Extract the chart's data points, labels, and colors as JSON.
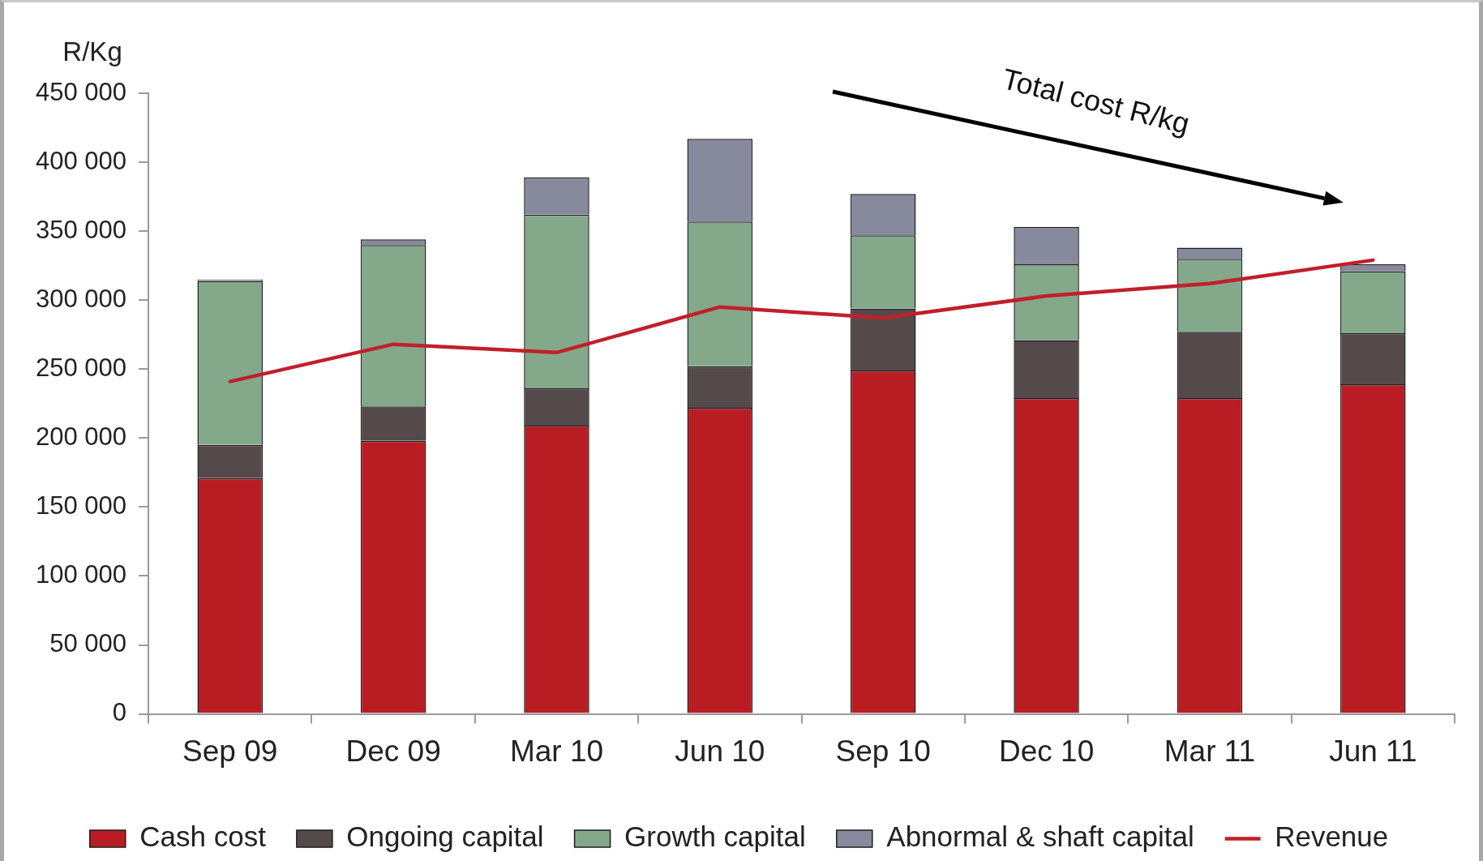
{
  "chart_data": {
    "type": "bar",
    "stacked": true,
    "ylabel": "R/Kg",
    "categories": [
      "Sep 09",
      "Dec 09",
      "Mar 10",
      "Jun 10",
      "Sep 10",
      "Dec 10",
      "Mar 11",
      "Jun 11"
    ],
    "series": [
      {
        "name": "Cash cost",
        "color": "#b91d23",
        "values": [
          171000,
          198000,
          209000,
          222000,
          249000,
          229000,
          229000,
          239000
        ]
      },
      {
        "name": "Ongoing capital",
        "color": "#54494b",
        "values": [
          24000,
          25000,
          27000,
          30000,
          45000,
          42000,
          48000,
          37000
        ]
      },
      {
        "name": "Growth capital",
        "color": "#84a98a",
        "values": [
          119000,
          117000,
          126000,
          105000,
          53000,
          55000,
          53000,
          45000
        ]
      },
      {
        "name": "Abnormal & shaft capital",
        "color": "#878a9c",
        "values": [
          1000,
          4000,
          27000,
          60000,
          30000,
          27000,
          8000,
          5000
        ]
      },
      {
        "name": "Revenue",
        "type": "line",
        "color": "#c0202a",
        "values": [
          241000,
          268000,
          262000,
          295000,
          287000,
          303000,
          312000,
          329000
        ]
      }
    ],
    "ylim": [
      0,
      450000
    ],
    "yticks": [
      0,
      {
        "value": 50000,
        "label": "50 000"
      },
      {
        "value": 100000,
        "label": "100 000"
      },
      {
        "value": 150000,
        "label": "150 000"
      },
      {
        "value": 200000,
        "label": "200 000"
      },
      {
        "value": 250000,
        "label": "250 000"
      },
      {
        "value": 300000,
        "label": "300 000"
      },
      {
        "value": 350000,
        "label": "350 000"
      },
      {
        "value": 400000,
        "label": "400 000"
      },
      {
        "value": 450000,
        "label": "450 000"
      }
    ],
    "legend": "bottom",
    "annotations": [
      "Total cost R/kg"
    ]
  }
}
